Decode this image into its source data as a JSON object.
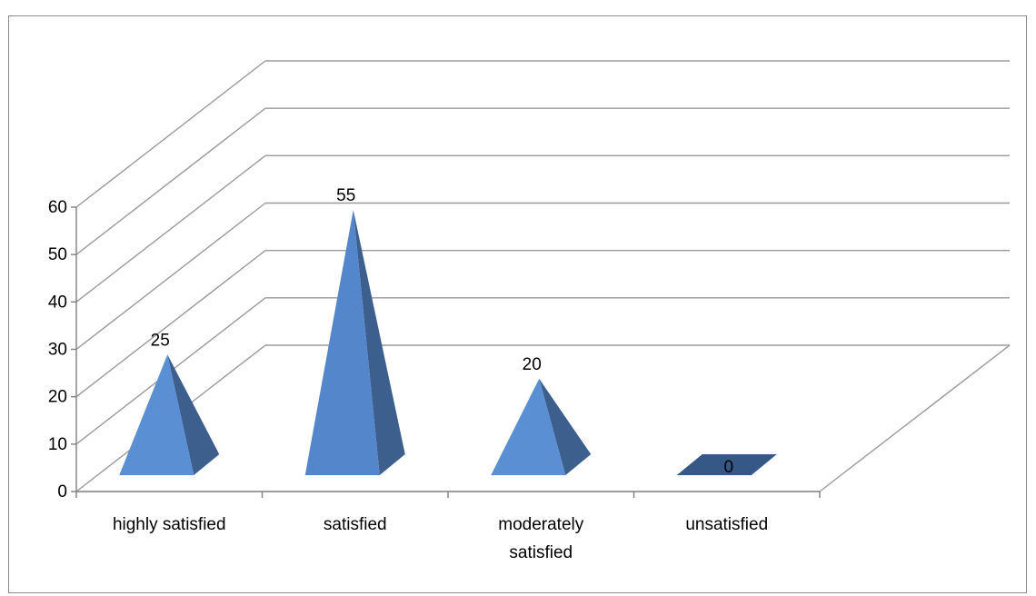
{
  "chart_data": {
    "type": "bar",
    "style": "3d-pyramid",
    "categories": [
      "highly satisfied",
      "satisfied",
      "moderately satisfied",
      "unsatisfied"
    ],
    "category_lines": [
      [
        "highly satisfied"
      ],
      [
        "satisfied"
      ],
      [
        "moderately",
        "satisfied"
      ],
      [
        "unsatisfied"
      ]
    ],
    "values": [
      25,
      55,
      20,
      0
    ],
    "data_labels": [
      "25",
      "55",
      "20",
      "0"
    ],
    "y_ticks": [
      "0",
      "10",
      "20",
      "30",
      "40",
      "50",
      "60"
    ],
    "ylim": [
      0,
      60
    ],
    "grid": true,
    "legend": "none",
    "colors": {
      "face_light": "#5b8fd4",
      "face_main": "#5486cc",
      "face_dark": "#3c5f8e",
      "top_dark": "#355886",
      "grid": "#9a9a9a",
      "axis": "#7f7f7f"
    }
  }
}
